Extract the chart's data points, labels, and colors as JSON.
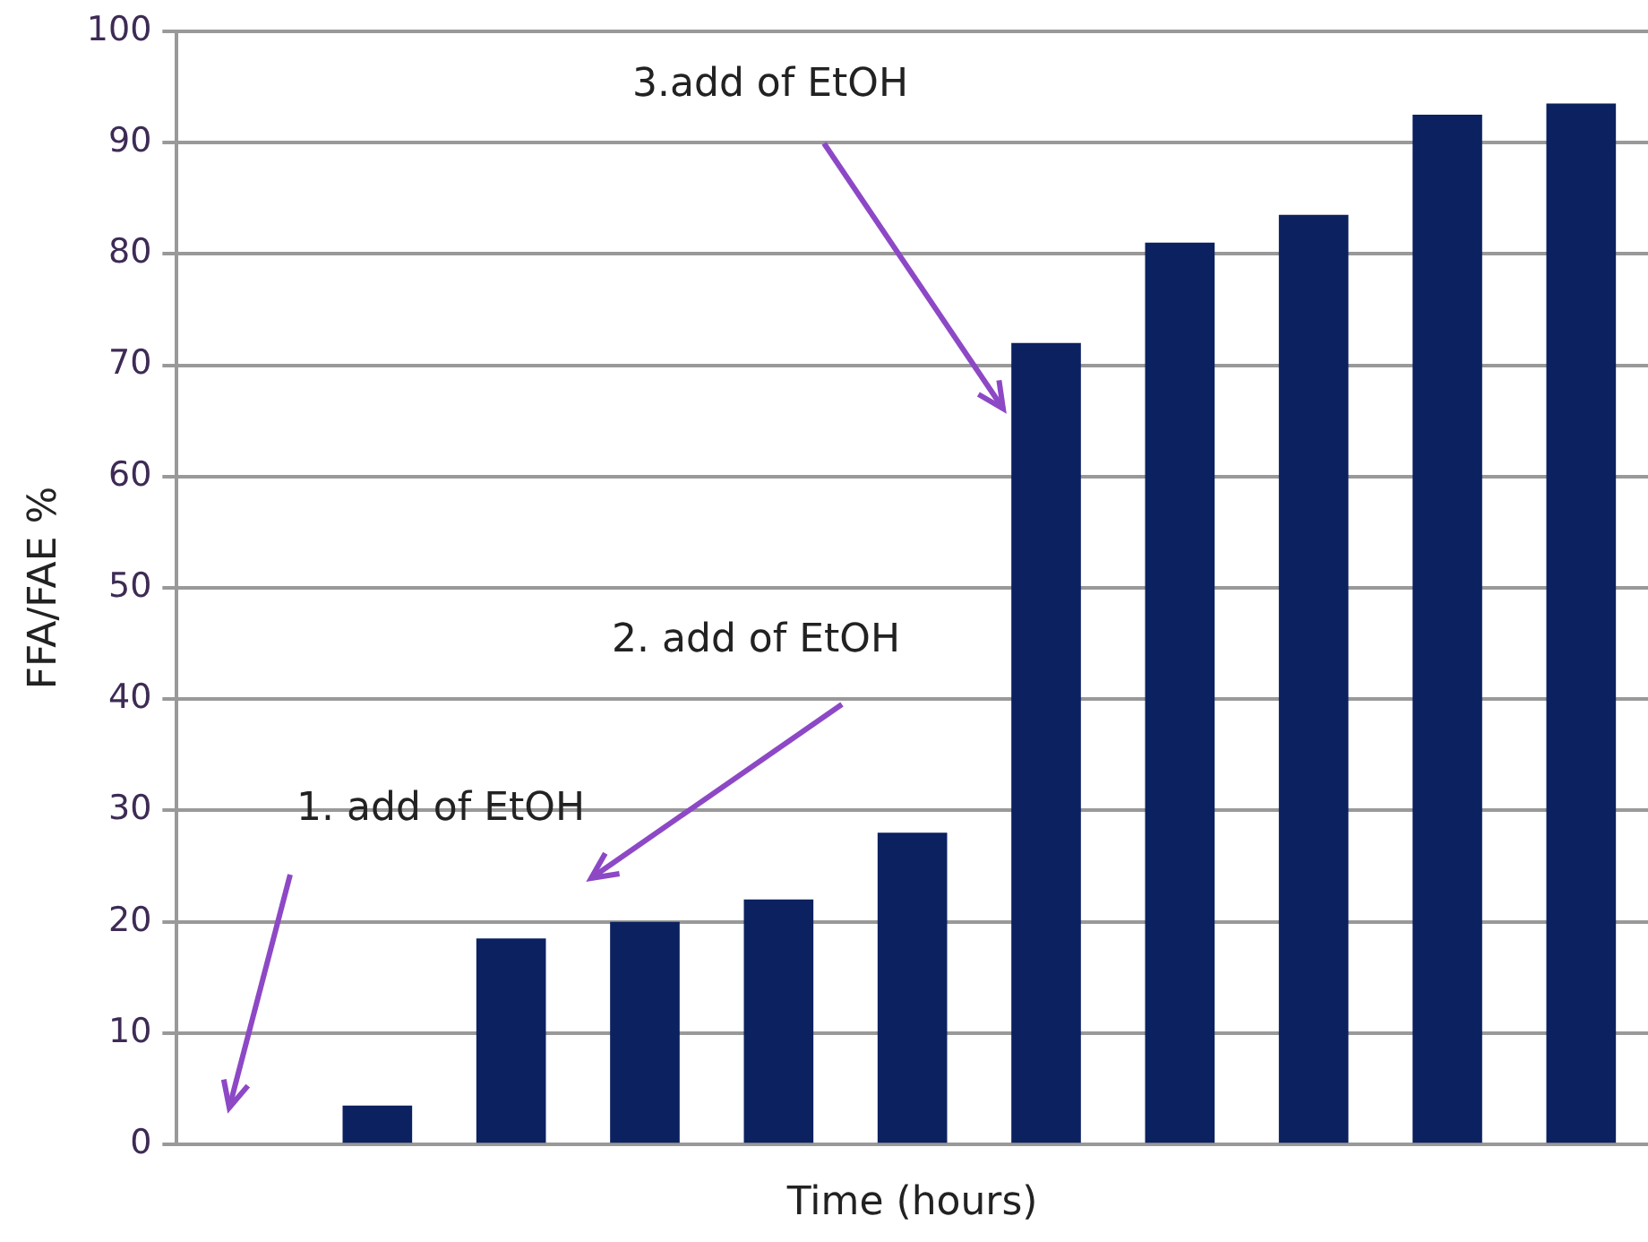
{
  "chart_data": {
    "type": "bar",
    "xlabel": "Time (hours)",
    "ylabel": "FFA/FAE %",
    "categories": [
      null,
      null,
      null,
      null,
      null,
      null,
      null,
      null,
      null,
      null,
      null
    ],
    "values": [
      0,
      3.5,
      18.5,
      20,
      22,
      28,
      72,
      81,
      83.5,
      92.5,
      93.5
    ],
    "color": "#0c2160",
    "ylim": [
      0,
      100
    ],
    "yticks": [
      0,
      10,
      20,
      30,
      40,
      50,
      60,
      70,
      80,
      90,
      100
    ],
    "grid": "y",
    "legend": false,
    "tick_labels": "y",
    "annotations": [
      "1. add of EtOH",
      "2. add of EtOH",
      "3.add of EtOH"
    ]
  }
}
